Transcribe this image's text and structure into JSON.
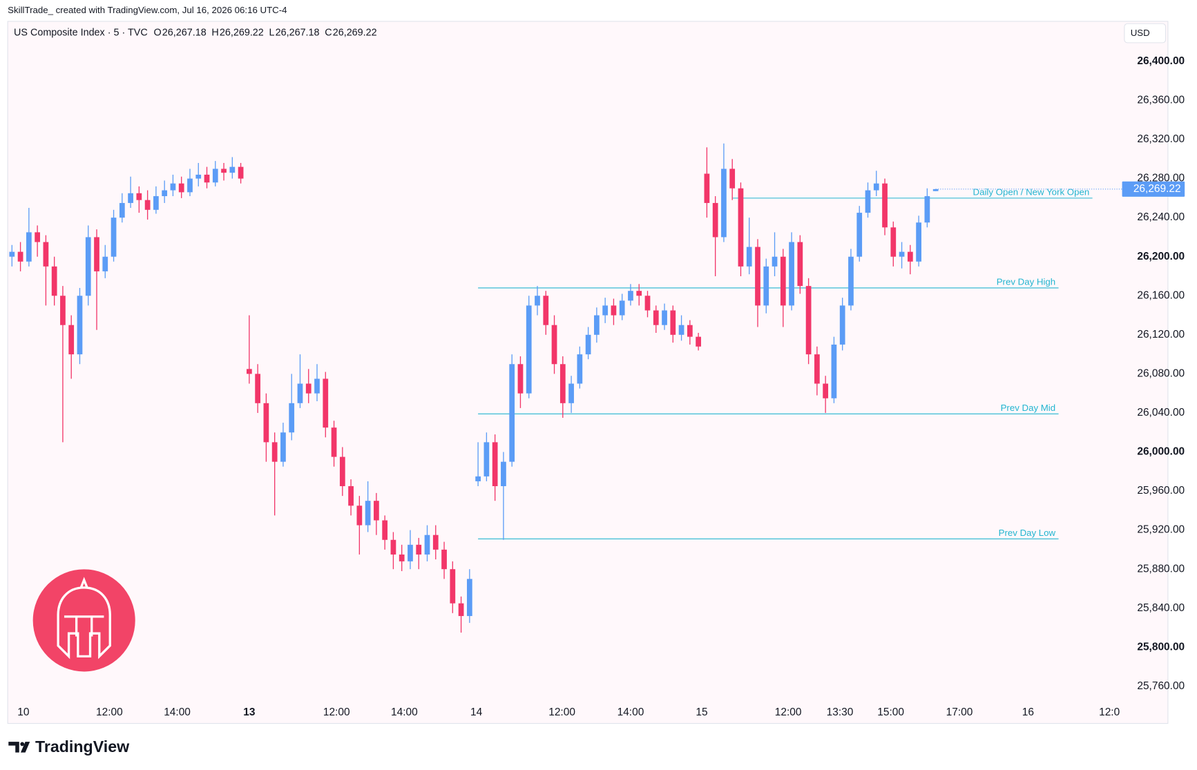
{
  "watermark": "SkillTrade_ created with TradingView.com, Jul 16, 2026 06:16 UTC-4",
  "currency": "USD",
  "brand": "TradingView",
  "legend": {
    "symbol": "US Composite Index · 5 · TVC",
    "ohlc": [
      {
        "key": "O",
        "value": "26,267.18"
      },
      {
        "key": "H",
        "value": "26,269.22"
      },
      {
        "key": "L",
        "value": "26,267.18"
      },
      {
        "key": "C",
        "value": "26,269.22"
      }
    ]
  },
  "chart_data": {
    "type": "candlestick",
    "up_color": "#5b9cf6",
    "down_color": "#f23669",
    "level_color": "#22b5d0",
    "xlim": [
      -0.5,
      131
    ],
    "ylim": [
      25722,
      26441
    ],
    "xticks": [
      {
        "value": 1.35,
        "label": "10"
      },
      {
        "value": 11.5,
        "label": "12:00"
      },
      {
        "value": 19.5,
        "label": "14:00"
      },
      {
        "value": 28,
        "label": "13",
        "bold": true
      },
      {
        "value": 38.3,
        "label": "12:00"
      },
      {
        "value": 46.3,
        "label": "14:00"
      },
      {
        "value": 54.8,
        "label": "14"
      },
      {
        "value": 64.9,
        "label": "12:00"
      },
      {
        "value": 73,
        "label": "14:00"
      },
      {
        "value": 81.4,
        "label": "15"
      },
      {
        "value": 91.6,
        "label": "12:00"
      },
      {
        "value": 97.7,
        "label": "13:30"
      },
      {
        "value": 103.7,
        "label": "15:00"
      },
      {
        "value": 111.8,
        "label": "17:00"
      },
      {
        "value": 119.9,
        "label": "16"
      },
      {
        "value": 129.5,
        "label": "12:0"
      }
    ],
    "yticks": [
      {
        "value": 26400,
        "label": "26,400.00",
        "bold": true
      },
      {
        "value": 26360,
        "label": "26,360.00"
      },
      {
        "value": 26320,
        "label": "26,320.00"
      },
      {
        "value": 26280,
        "label": "26,280.00"
      },
      {
        "value": 26240,
        "label": "26,240.00"
      },
      {
        "value": 26200,
        "label": "26,200.00",
        "bold": true
      },
      {
        "value": 26160,
        "label": "26,160.00"
      },
      {
        "value": 26120,
        "label": "26,120.00"
      },
      {
        "value": 26080,
        "label": "26,080.00"
      },
      {
        "value": 26040,
        "label": "26,040.00"
      },
      {
        "value": 26000,
        "label": "26,000.00",
        "bold": true
      },
      {
        "value": 25960,
        "label": "25,960.00"
      },
      {
        "value": 25920,
        "label": "25,920.00"
      },
      {
        "value": 25880,
        "label": "25,880.00"
      },
      {
        "value": 25840,
        "label": "25,840.00"
      },
      {
        "value": 25800,
        "label": "25,800.00",
        "bold": true
      },
      {
        "value": 25760,
        "label": "25,760.00"
      }
    ],
    "last_price": {
      "value": 26269.22,
      "label": "26,269.22"
    },
    "levels": [
      {
        "label": "Daily Open / New York Open",
        "value": 26260,
        "from": 85,
        "to": 127.5
      },
      {
        "label": "Prev Day High",
        "value": 26168,
        "from": 55,
        "to": 123.5
      },
      {
        "label": "Prev Day Mid",
        "value": 26039,
        "from": 55,
        "to": 123.5
      },
      {
        "label": "Prev Day Low",
        "value": 25911,
        "from": 55,
        "to": 123.5
      }
    ],
    "candles": [
      [
        26200,
        26212,
        26190,
        26205
      ],
      [
        26205,
        26215,
        26185,
        26195
      ],
      [
        26195,
        26250,
        26190,
        26225
      ],
      [
        26225,
        26232,
        26200,
        26215
      ],
      [
        26215,
        26222,
        26150,
        26190
      ],
      [
        26190,
        26200,
        26150,
        26160
      ],
      [
        26160,
        26170,
        26010,
        26130
      ],
      [
        26130,
        26140,
        26075,
        26100
      ],
      [
        26100,
        26168,
        26090,
        26160
      ],
      [
        26160,
        26232,
        26150,
        26220
      ],
      [
        26220,
        26228,
        26125,
        26185
      ],
      [
        26185,
        26212,
        26178,
        26200
      ],
      [
        26200,
        26248,
        26195,
        26240
      ],
      [
        26240,
        26265,
        26235,
        26255
      ],
      [
        26255,
        26282,
        26250,
        26265
      ],
      [
        26265,
        26272,
        26245,
        26258
      ],
      [
        26258,
        26268,
        26238,
        26248
      ],
      [
        26248,
        26272,
        26244,
        26262
      ],
      [
        26262,
        26278,
        26255,
        26268
      ],
      [
        26268,
        26284,
        26262,
        26275
      ],
      [
        26275,
        26282,
        26260,
        26266
      ],
      [
        26266,
        26290,
        26262,
        26280
      ],
      [
        26280,
        26296,
        26272,
        26284
      ],
      [
        26284,
        26292,
        26270,
        26276
      ],
      [
        26276,
        26298,
        26272,
        26290
      ],
      [
        26290,
        26296,
        26278,
        26286
      ],
      [
        26286,
        26302,
        26280,
        26292
      ],
      [
        26292,
        26296,
        26275,
        26280
      ],
      [
        26085,
        26140,
        26070,
        26080
      ],
      [
        26080,
        26090,
        26040,
        26050
      ],
      [
        26050,
        26060,
        25990,
        26010
      ],
      [
        26010,
        26020,
        25935,
        25990
      ],
      [
        25990,
        26030,
        25985,
        26020
      ],
      [
        26020,
        26080,
        26012,
        26050
      ],
      [
        26050,
        26100,
        26045,
        26070
      ],
      [
        26070,
        26085,
        26050,
        26060
      ],
      [
        26060,
        26090,
        26052,
        26075
      ],
      [
        26075,
        26082,
        26015,
        26025
      ],
      [
        26025,
        26032,
        25985,
        25995
      ],
      [
        25995,
        26005,
        25955,
        25965
      ],
      [
        25965,
        25972,
        25935,
        25945
      ],
      [
        25945,
        25955,
        25895,
        25925
      ],
      [
        25925,
        25970,
        25918,
        25950
      ],
      [
        25950,
        25958,
        25915,
        25930
      ],
      [
        25930,
        25935,
        25900,
        25910
      ],
      [
        25910,
        25918,
        25880,
        25895
      ],
      [
        25895,
        25905,
        25878,
        25888
      ],
      [
        25888,
        25920,
        25880,
        25905
      ],
      [
        25905,
        25912,
        25880,
        25895
      ],
      [
        25895,
        25925,
        25888,
        25915
      ],
      [
        25915,
        25925,
        25890,
        25900
      ],
      [
        25900,
        25908,
        25870,
        25880
      ],
      [
        25880,
        25888,
        25835,
        25845
      ],
      [
        25845,
        25852,
        25815,
        25832
      ],
      [
        25832,
        25880,
        25825,
        25870
      ],
      [
        25970,
        26010,
        25965,
        25975
      ],
      [
        25975,
        26020,
        25970,
        26010
      ],
      [
        26010,
        26018,
        25950,
        25965
      ],
      [
        25965,
        26000,
        25910,
        25990
      ],
      [
        25990,
        26100,
        25985,
        26090
      ],
      [
        26090,
        26098,
        26045,
        26060
      ],
      [
        26060,
        26160,
        26055,
        26150
      ],
      [
        26150,
        26170,
        26140,
        26160
      ],
      [
        26160,
        26165,
        26120,
        26130
      ],
      [
        26130,
        26140,
        26080,
        26090
      ],
      [
        26090,
        26098,
        26035,
        26050
      ],
      [
        26050,
        26078,
        26040,
        26070
      ],
      [
        26070,
        26108,
        26065,
        26100
      ],
      [
        26100,
        26128,
        26095,
        26120
      ],
      [
        26120,
        26148,
        26112,
        26140
      ],
      [
        26140,
        26158,
        26132,
        26150
      ],
      [
        26150,
        26157,
        26130,
        26140
      ],
      [
        26140,
        26162,
        26135,
        26155
      ],
      [
        26155,
        26172,
        26150,
        26165
      ],
      [
        26165,
        26172,
        26150,
        26160
      ],
      [
        26160,
        26165,
        26138,
        26145
      ],
      [
        26145,
        26150,
        26122,
        26130
      ],
      [
        26130,
        26152,
        26125,
        26145
      ],
      [
        26145,
        26150,
        26112,
        26120
      ],
      [
        26120,
        26140,
        26114,
        26130
      ],
      [
        26130,
        26135,
        26110,
        26118
      ],
      [
        26118,
        26122,
        26104,
        26108
      ],
      [
        26285,
        26312,
        26240,
        26255
      ],
      [
        26255,
        26262,
        26180,
        26220
      ],
      [
        26220,
        26316,
        26215,
        26290
      ],
      [
        26290,
        26300,
        26258,
        26270
      ],
      [
        26270,
        26276,
        26180,
        26190
      ],
      [
        26190,
        26240,
        26182,
        26210
      ],
      [
        26210,
        26218,
        26128,
        26150
      ],
      [
        26150,
        26198,
        26142,
        26190
      ],
      [
        26190,
        26225,
        26180,
        26200
      ],
      [
        26200,
        26208,
        26128,
        26150
      ],
      [
        26150,
        26225,
        26145,
        26215
      ],
      [
        26215,
        26222,
        26162,
        26170
      ],
      [
        26170,
        26178,
        26090,
        26100
      ],
      [
        26100,
        26108,
        26058,
        26070
      ],
      [
        26070,
        26078,
        26040,
        26055
      ],
      [
        26055,
        26118,
        26050,
        26110
      ],
      [
        26110,
        26158,
        26104,
        26150
      ],
      [
        26150,
        26208,
        26145,
        26200
      ],
      [
        26200,
        26252,
        26195,
        26245
      ],
      [
        26245,
        26276,
        26240,
        26268
      ],
      [
        26268,
        26288,
        26262,
        26275
      ],
      [
        26275,
        26280,
        26222,
        26230
      ],
      [
        26230,
        26236,
        26190,
        26200
      ],
      [
        26200,
        26215,
        26188,
        26205
      ],
      [
        26205,
        26212,
        26182,
        26195
      ],
      [
        26195,
        26242,
        26190,
        26235
      ],
      [
        26235,
        26270,
        26230,
        26262
      ],
      [
        26267.18,
        26269.22,
        26267.18,
        26269.22
      ]
    ]
  }
}
